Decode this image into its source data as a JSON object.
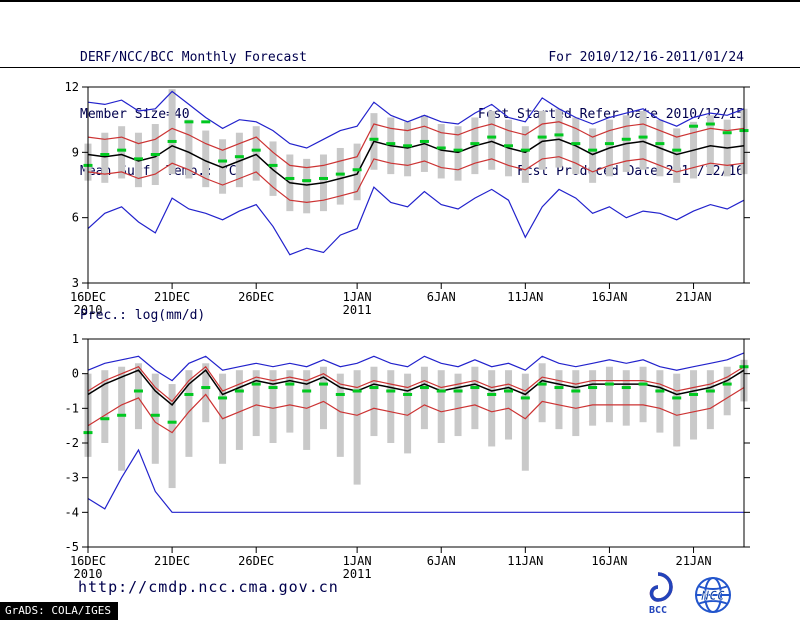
{
  "header": {
    "title": "DERF/NCC/BCC Monthly Forecast",
    "member_size": "Member Size=40",
    "for_range": "For 2010/12/16-2011/01/24",
    "refer_date": "Fcst Started Refer Date 2010/12/15",
    "produced_date": "Fcst Produced Date 2010/12/16"
  },
  "footer": {
    "url": "http://cmdp.ncc.cma.gov.cn",
    "grads_credit": "GrADS: COLA/IGES",
    "bcc_label": "BCC",
    "ncc_label": "NCC"
  },
  "colors": {
    "bar": "#c9c9c9",
    "marker_green": "#00c820",
    "line_blue": "#2222cc",
    "line_red": "#cc3333",
    "line_black": "#000000",
    "header_text": "#00004d"
  },
  "chart_data": [
    {
      "type": "line",
      "title": "Mean Surf. Temp.: °C",
      "ylim": [
        3,
        12
      ],
      "yticks": [
        3,
        6,
        9,
        12
      ],
      "n": 40,
      "xticks": [
        {
          "pos": 0,
          "label": "16DEC",
          "year": "2010"
        },
        {
          "pos": 5,
          "label": "21DEC"
        },
        {
          "pos": 10,
          "label": "26DEC"
        },
        {
          "pos": 16,
          "label": "1JAN",
          "year": "2011"
        },
        {
          "pos": 21,
          "label": "6JAN"
        },
        {
          "pos": 26,
          "label": "11JAN"
        },
        {
          "pos": 31,
          "label": "16JAN"
        },
        {
          "pos": 36,
          "label": "21JAN"
        }
      ],
      "bars": {
        "name": "ensemble-spread",
        "low": [
          7.7,
          7.6,
          7.8,
          7.4,
          7.5,
          8.0,
          7.8,
          7.4,
          7.1,
          7.4,
          7.7,
          7.0,
          6.3,
          6.2,
          6.3,
          6.6,
          6.8,
          8.2,
          8.0,
          7.9,
          8.1,
          7.8,
          7.7,
          8.0,
          8.2,
          7.9,
          7.6,
          8.2,
          8.3,
          8.0,
          7.6,
          7.9,
          8.1,
          8.2,
          7.9,
          7.6,
          7.8,
          8.0,
          7.9,
          8.0
        ],
        "high": [
          9.4,
          9.9,
          10.2,
          9.9,
          10.3,
          11.9,
          10.5,
          10.0,
          9.6,
          9.9,
          10.2,
          9.5,
          8.9,
          8.7,
          8.9,
          9.2,
          9.4,
          10.8,
          10.6,
          10.4,
          10.7,
          10.3,
          10.2,
          10.6,
          10.9,
          10.5,
          10.2,
          10.9,
          11.0,
          10.6,
          10.1,
          10.5,
          10.7,
          10.9,
          10.5,
          10.1,
          10.4,
          10.7,
          10.5,
          11.0
        ]
      },
      "markers": {
        "name": "ensemble-median",
        "values": [
          8.4,
          8.9,
          9.1,
          8.7,
          8.9,
          9.5,
          10.4,
          10.4,
          8.6,
          8.8,
          9.1,
          8.4,
          7.8,
          7.7,
          7.8,
          8.0,
          8.2,
          9.6,
          9.4,
          9.3,
          9.5,
          9.2,
          9.1,
          9.4,
          9.7,
          9.3,
          9.1,
          9.7,
          9.8,
          9.4,
          9.1,
          9.4,
          9.6,
          9.7,
          9.4,
          9.1,
          10.2,
          10.3,
          9.9,
          10.0
        ]
      },
      "series": [
        {
          "name": "max",
          "color": "#2222cc",
          "values": [
            11.3,
            11.2,
            11.4,
            10.9,
            11.0,
            11.8,
            11.2,
            10.6,
            10.1,
            10.5,
            10.4,
            10.0,
            9.4,
            9.2,
            9.6,
            10.0,
            10.2,
            11.3,
            10.7,
            10.4,
            10.7,
            10.4,
            10.3,
            10.8,
            11.2,
            10.6,
            10.4,
            11.5,
            11.0,
            10.6,
            10.3,
            10.6,
            10.8,
            11.0,
            10.5,
            10.2,
            10.6,
            10.8,
            10.7,
            11.0
          ]
        },
        {
          "name": "plus-std",
          "color": "#cc3333",
          "values": [
            9.7,
            9.6,
            9.7,
            9.4,
            9.6,
            10.1,
            9.8,
            9.4,
            9.1,
            9.4,
            9.7,
            9.0,
            8.4,
            8.3,
            8.4,
            8.6,
            8.8,
            10.3,
            10.1,
            10.0,
            10.2,
            9.9,
            9.8,
            10.1,
            10.3,
            10.0,
            9.8,
            10.3,
            10.4,
            10.1,
            9.7,
            10.0,
            10.2,
            10.3,
            10.0,
            9.7,
            9.9,
            10.1,
            10.0,
            10.1
          ]
        },
        {
          "name": "ensemble-mean",
          "color": "#000000",
          "values": [
            8.9,
            8.8,
            8.9,
            8.6,
            8.8,
            9.3,
            9.0,
            8.6,
            8.3,
            8.6,
            8.9,
            8.2,
            7.6,
            7.5,
            7.6,
            7.8,
            8.0,
            9.5,
            9.3,
            9.2,
            9.4,
            9.1,
            9.0,
            9.3,
            9.5,
            9.2,
            9.0,
            9.5,
            9.6,
            9.3,
            8.9,
            9.2,
            9.4,
            9.5,
            9.2,
            8.9,
            9.1,
            9.3,
            9.2,
            9.3
          ]
        },
        {
          "name": "minus-std",
          "color": "#cc3333",
          "values": [
            8.1,
            8.0,
            8.1,
            7.8,
            8.0,
            8.5,
            8.2,
            7.8,
            7.5,
            7.8,
            8.1,
            7.4,
            6.8,
            6.7,
            6.8,
            7.0,
            7.2,
            8.7,
            8.5,
            8.4,
            8.6,
            8.3,
            8.2,
            8.5,
            8.7,
            8.4,
            8.2,
            8.7,
            8.8,
            8.5,
            8.1,
            8.4,
            8.6,
            8.7,
            8.4,
            8.1,
            8.3,
            8.5,
            8.4,
            8.5
          ]
        },
        {
          "name": "min",
          "color": "#2222cc",
          "values": [
            5.5,
            6.2,
            6.5,
            5.8,
            5.3,
            6.9,
            6.4,
            6.2,
            5.9,
            6.3,
            6.6,
            5.6,
            4.3,
            4.6,
            4.4,
            5.2,
            5.5,
            7.4,
            6.7,
            6.5,
            7.2,
            6.6,
            6.4,
            6.9,
            7.3,
            6.8,
            5.1,
            6.5,
            7.3,
            6.9,
            6.2,
            6.5,
            6.0,
            6.3,
            6.2,
            5.9,
            6.3,
            6.6,
            6.4,
            6.8
          ]
        }
      ]
    },
    {
      "type": "line",
      "title": "Prec.: log(mm/d)",
      "ylim": [
        -5,
        1
      ],
      "yticks": [
        1,
        0,
        -1,
        -2,
        -3,
        -4,
        -5
      ],
      "n": 40,
      "xticks": [
        {
          "pos": 0,
          "label": "16DEC",
          "year": "2010"
        },
        {
          "pos": 5,
          "label": "21DEC"
        },
        {
          "pos": 10,
          "label": "26DEC"
        },
        {
          "pos": 16,
          "label": "1JAN",
          "year": "2011"
        },
        {
          "pos": 21,
          "label": "6JAN"
        },
        {
          "pos": 26,
          "label": "11JAN"
        },
        {
          "pos": 31,
          "label": "16JAN"
        },
        {
          "pos": 36,
          "label": "21JAN"
        }
      ],
      "bars": {
        "name": "ensemble-spread",
        "low": [
          -2.4,
          -2.0,
          -2.8,
          -1.6,
          -2.6,
          -3.3,
          -2.4,
          -1.4,
          -2.6,
          -2.2,
          -1.8,
          -2.0,
          -1.7,
          -2.2,
          -1.6,
          -2.4,
          -3.2,
          -1.8,
          -2.0,
          -2.3,
          -1.6,
          -2.0,
          -1.8,
          -1.6,
          -2.1,
          -1.9,
          -2.8,
          -1.4,
          -1.6,
          -1.8,
          -1.5,
          -1.4,
          -1.5,
          -1.4,
          -1.7,
          -2.1,
          -1.9,
          -1.6,
          -1.2,
          -0.8
        ],
        "high": [
          0.0,
          0.1,
          0.2,
          0.3,
          0.0,
          -0.3,
          0.1,
          0.3,
          0.0,
          0.1,
          0.1,
          0.1,
          0.1,
          0.1,
          0.2,
          0.0,
          0.1,
          0.2,
          0.1,
          0.0,
          0.2,
          0.1,
          0.0,
          0.2,
          0.1,
          0.1,
          0.0,
          0.3,
          0.1,
          0.1,
          0.1,
          0.2,
          0.1,
          0.2,
          0.1,
          0.0,
          0.1,
          0.1,
          0.2,
          0.4
        ]
      },
      "markers": {
        "name": "ensemble-median",
        "values": [
          -1.7,
          -1.3,
          -1.2,
          -0.5,
          -1.2,
          -1.4,
          -0.6,
          -0.4,
          -0.7,
          -0.5,
          -0.3,
          -0.4,
          -0.3,
          -0.5,
          -0.3,
          -0.6,
          -0.5,
          -0.4,
          -0.5,
          -0.6,
          -0.4,
          -0.5,
          -0.5,
          -0.4,
          -0.6,
          -0.5,
          -0.7,
          -0.3,
          -0.4,
          -0.5,
          -0.4,
          -0.3,
          -0.4,
          -0.3,
          -0.5,
          -0.7,
          -0.6,
          -0.5,
          -0.3,
          0.2
        ]
      },
      "series": [
        {
          "name": "max",
          "color": "#2222cc",
          "values": [
            0.1,
            0.3,
            0.4,
            0.5,
            0.1,
            -0.2,
            0.3,
            0.5,
            0.1,
            0.2,
            0.3,
            0.2,
            0.3,
            0.2,
            0.4,
            0.2,
            0.3,
            0.5,
            0.3,
            0.2,
            0.5,
            0.3,
            0.2,
            0.4,
            0.2,
            0.3,
            0.1,
            0.5,
            0.3,
            0.2,
            0.3,
            0.4,
            0.3,
            0.4,
            0.2,
            0.1,
            0.2,
            0.3,
            0.4,
            0.6
          ]
        },
        {
          "name": "plus-std",
          "color": "#cc3333",
          "values": [
            -0.5,
            -0.2,
            0.0,
            0.2,
            -0.4,
            -0.8,
            -0.2,
            0.2,
            -0.5,
            -0.3,
            -0.1,
            -0.2,
            -0.1,
            -0.2,
            0.0,
            -0.3,
            -0.4,
            -0.2,
            -0.3,
            -0.4,
            -0.2,
            -0.4,
            -0.3,
            -0.2,
            -0.4,
            -0.3,
            -0.5,
            -0.1,
            -0.2,
            -0.3,
            -0.2,
            -0.2,
            -0.2,
            -0.2,
            -0.3,
            -0.5,
            -0.4,
            -0.3,
            -0.1,
            0.2
          ]
        },
        {
          "name": "ensemble-mean",
          "color": "#000000",
          "values": [
            -0.6,
            -0.3,
            -0.1,
            0.1,
            -0.5,
            -0.9,
            -0.3,
            0.1,
            -0.6,
            -0.4,
            -0.2,
            -0.3,
            -0.2,
            -0.3,
            -0.1,
            -0.4,
            -0.5,
            -0.3,
            -0.4,
            -0.5,
            -0.3,
            -0.5,
            -0.4,
            -0.3,
            -0.5,
            -0.4,
            -0.6,
            -0.2,
            -0.3,
            -0.4,
            -0.3,
            -0.3,
            -0.3,
            -0.3,
            -0.4,
            -0.6,
            -0.5,
            -0.4,
            -0.2,
            0.1
          ]
        },
        {
          "name": "minus-std",
          "color": "#cc3333",
          "values": [
            -1.5,
            -1.2,
            -0.9,
            -0.7,
            -1.4,
            -1.7,
            -1.1,
            -0.6,
            -1.3,
            -1.1,
            -0.9,
            -1.0,
            -0.9,
            -1.0,
            -0.8,
            -1.1,
            -1.2,
            -1.0,
            -1.1,
            -1.2,
            -0.9,
            -1.1,
            -1.0,
            -0.9,
            -1.1,
            -1.0,
            -1.3,
            -0.8,
            -0.9,
            -1.0,
            -0.9,
            -0.9,
            -0.9,
            -0.9,
            -1.0,
            -1.2,
            -1.1,
            -1.0,
            -0.7,
            -0.4
          ]
        },
        {
          "name": "min",
          "color": "#2222cc",
          "values": [
            -3.6,
            -3.9,
            -3.0,
            -2.2,
            -3.4,
            -4.0,
            -4.0,
            -4.0,
            -4.0,
            -4.0,
            -4.0,
            -4.0,
            -4.0,
            -4.0,
            -4.0,
            -4.0,
            -4.0,
            -4.0,
            -4.0,
            -4.0,
            -4.0,
            -4.0,
            -4.0,
            -4.0,
            -4.0,
            -4.0,
            -4.0,
            -4.0,
            -4.0,
            -4.0,
            -4.0,
            -4.0,
            -4.0,
            -4.0,
            -4.0,
            -4.0,
            -4.0,
            -4.0,
            -4.0,
            -4.0
          ]
        }
      ]
    }
  ]
}
